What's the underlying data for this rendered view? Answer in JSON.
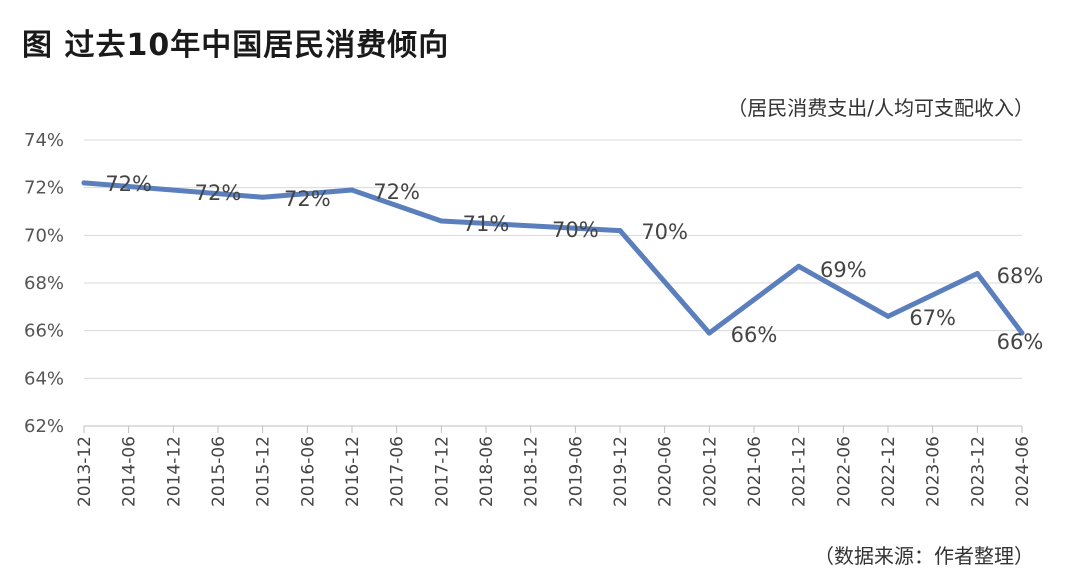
{
  "title": "图  过去10年中国居民消费倾向",
  "unit_note": "（居民消费支出/人均可支配收入）",
  "source_note": "（数据来源：作者整理）",
  "colors": {
    "line": "#5b7fbd",
    "grid": "#d9d9d9"
  },
  "chart_data": {
    "type": "line",
    "x": [
      "2013-12",
      "2014-06",
      "2014-12",
      "2015-06",
      "2015-12",
      "2016-06",
      "2016-12",
      "2017-06",
      "2017-12",
      "2018-06",
      "2018-12",
      "2019-06",
      "2019-12",
      "2020-06",
      "2020-12",
      "2021-06",
      "2021-12",
      "2022-06",
      "2022-12",
      "2023-06",
      "2023-12",
      "2024-06"
    ],
    "series": [
      {
        "values": [
          72.2,
          null,
          null,
          null,
          71.6,
          null,
          71.9,
          null,
          70.6,
          null,
          null,
          null,
          70.2,
          null,
          65.9,
          null,
          68.7,
          null,
          66.6,
          null,
          68.4,
          65.9
        ]
      }
    ],
    "data_labels": [
      {
        "x": "2014-06",
        "text": "72%"
      },
      {
        "x": "2015-06",
        "text": "72%"
      },
      {
        "x": "2016-06",
        "text": "72%"
      },
      {
        "x": "2017-06",
        "text": "72%"
      },
      {
        "x": "2018-06",
        "text": "71%"
      },
      {
        "x": "2019-06",
        "text": "70%"
      },
      {
        "x": "2020-06",
        "text": "70%"
      },
      {
        "x": "2021-06",
        "text": "66%"
      },
      {
        "x": "2022-06",
        "text": "69%"
      },
      {
        "x": "2023-06",
        "text": "67%"
      },
      {
        "x": "2024-06",
        "text": "68%"
      },
      {
        "x": "2024-06",
        "text": "66%"
      }
    ],
    "y_ticks": [
      "62%",
      "64%",
      "66%",
      "68%",
      "70%",
      "72%",
      "74%"
    ],
    "ylim": [
      62,
      74
    ],
    "grid": true,
    "legend": "none"
  }
}
